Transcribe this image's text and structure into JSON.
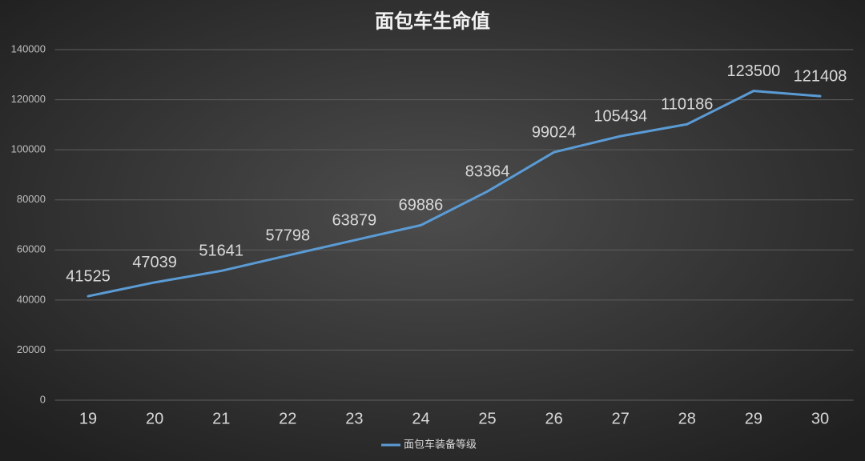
{
  "chart_data": {
    "type": "line",
    "title": "面包车生命值",
    "categories": [
      "19",
      "20",
      "21",
      "22",
      "23",
      "24",
      "25",
      "26",
      "27",
      "28",
      "29",
      "30"
    ],
    "series": [
      {
        "name": "面包车装备等级",
        "color": "#5b9bd5",
        "values": [
          41525,
          47039,
          51641,
          57798,
          63879,
          69886,
          83364,
          99024,
          105434,
          110186,
          123500,
          121408
        ]
      }
    ],
    "ylim": [
      0,
      140000
    ],
    "yticks": [
      0,
      20000,
      40000,
      60000,
      80000,
      100000,
      120000,
      140000
    ],
    "grid": true,
    "legend": "bottom"
  }
}
